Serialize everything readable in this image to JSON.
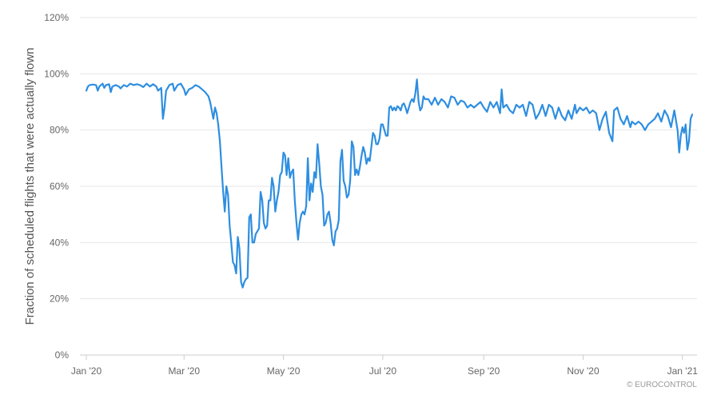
{
  "chart_data": {
    "type": "line",
    "title": "",
    "xlabel": "",
    "ylabel": "Fraction of scheduled flights that were actually flown",
    "ylim": [
      0,
      120
    ],
    "yticks": [
      "0%",
      "20%",
      "40%",
      "60%",
      "80%",
      "100%",
      "120%"
    ],
    "ytick_values": [
      0,
      20,
      40,
      60,
      80,
      100,
      120
    ],
    "xticks": [
      "Jan '20",
      "Mar '20",
      "May '20",
      "Jul '20",
      "Sep '20",
      "Nov '20",
      "Jan '21"
    ],
    "xtick_dates": [
      "2020-01-01",
      "2020-03-01",
      "2020-05-01",
      "2020-07-01",
      "2020-09-01",
      "2020-11-01",
      "2021-01-01"
    ],
    "xlim": [
      "2020-01-01",
      "2021-01-07"
    ],
    "grid": true,
    "legend": "none",
    "credit": "© EUROCONTROL",
    "line_color": "#2e8ee0",
    "series": [
      {
        "points": [
          [
            "2020-01-01",
            94
          ],
          [
            "2020-01-02",
            95.5
          ],
          [
            "2020-01-03",
            96
          ],
          [
            "2020-01-05",
            96.2
          ],
          [
            "2020-01-07",
            96
          ],
          [
            "2020-01-08",
            94
          ],
          [
            "2020-01-09",
            95.5
          ],
          [
            "2020-01-11",
            96.5
          ],
          [
            "2020-01-12",
            95
          ],
          [
            "2020-01-13",
            96
          ],
          [
            "2020-01-15",
            96.3
          ],
          [
            "2020-01-16",
            93.5
          ],
          [
            "2020-01-17",
            95.5
          ],
          [
            "2020-01-19",
            96
          ],
          [
            "2020-01-21",
            95.5
          ],
          [
            "2020-01-22",
            94.8
          ],
          [
            "2020-01-24",
            96
          ],
          [
            "2020-01-26",
            95.5
          ],
          [
            "2020-01-28",
            96.5
          ],
          [
            "2020-01-30",
            96
          ],
          [
            "2020-02-01",
            96.3
          ],
          [
            "2020-02-03",
            96
          ],
          [
            "2020-02-05",
            95.3
          ],
          [
            "2020-02-07",
            96.5
          ],
          [
            "2020-02-09",
            95.5
          ],
          [
            "2020-02-11",
            96.3
          ],
          [
            "2020-02-13",
            95.5
          ],
          [
            "2020-02-14",
            94
          ],
          [
            "2020-02-15",
            94.5
          ],
          [
            "2020-02-16",
            95
          ],
          [
            "2020-02-17",
            84
          ],
          [
            "2020-02-18",
            88
          ],
          [
            "2020-02-19",
            94
          ],
          [
            "2020-02-21",
            96
          ],
          [
            "2020-02-23",
            96.5
          ],
          [
            "2020-02-24",
            94
          ],
          [
            "2020-02-26",
            96
          ],
          [
            "2020-02-28",
            96.5
          ],
          [
            "2020-03-01",
            94.5
          ],
          [
            "2020-03-02",
            92.5
          ],
          [
            "2020-03-04",
            94.5
          ],
          [
            "2020-03-06",
            95
          ],
          [
            "2020-03-08",
            96
          ],
          [
            "2020-03-10",
            95.5
          ],
          [
            "2020-03-12",
            94.5
          ],
          [
            "2020-03-14",
            93.5
          ],
          [
            "2020-03-16",
            92
          ],
          [
            "2020-03-17",
            90
          ],
          [
            "2020-03-18",
            87
          ],
          [
            "2020-03-19",
            84
          ],
          [
            "2020-03-20",
            88
          ],
          [
            "2020-03-21",
            86
          ],
          [
            "2020-03-22",
            82
          ],
          [
            "2020-03-23",
            76
          ],
          [
            "2020-03-24",
            67
          ],
          [
            "2020-03-25",
            58
          ],
          [
            "2020-03-26",
            51
          ],
          [
            "2020-03-27",
            60
          ],
          [
            "2020-03-28",
            57
          ],
          [
            "2020-03-29",
            46
          ],
          [
            "2020-03-30",
            40
          ],
          [
            "2020-03-31",
            33
          ],
          [
            "2020-04-01",
            32
          ],
          [
            "2020-04-02",
            29
          ],
          [
            "2020-04-03",
            42
          ],
          [
            "2020-04-04",
            38
          ],
          [
            "2020-04-05",
            26
          ],
          [
            "2020-04-06",
            24
          ],
          [
            "2020-04-07",
            26
          ],
          [
            "2020-04-08",
            27
          ],
          [
            "2020-04-09",
            27.5
          ],
          [
            "2020-04-10",
            49
          ],
          [
            "2020-04-11",
            50
          ],
          [
            "2020-04-12",
            40
          ],
          [
            "2020-04-13",
            40
          ],
          [
            "2020-04-14",
            43
          ],
          [
            "2020-04-16",
            45
          ],
          [
            "2020-04-17",
            58
          ],
          [
            "2020-04-18",
            55
          ],
          [
            "2020-04-19",
            47
          ],
          [
            "2020-04-20",
            45
          ],
          [
            "2020-04-21",
            46
          ],
          [
            "2020-04-22",
            55
          ],
          [
            "2020-04-23",
            55
          ],
          [
            "2020-04-24",
            63
          ],
          [
            "2020-04-25",
            60
          ],
          [
            "2020-04-26",
            51
          ],
          [
            "2020-04-27",
            55
          ],
          [
            "2020-04-28",
            58
          ],
          [
            "2020-04-29",
            64
          ],
          [
            "2020-04-30",
            65
          ],
          [
            "2020-05-01",
            72
          ],
          [
            "2020-05-02",
            71
          ],
          [
            "2020-05-03",
            64
          ],
          [
            "2020-05-04",
            70
          ],
          [
            "2020-05-05",
            63
          ],
          [
            "2020-05-06",
            65
          ],
          [
            "2020-05-07",
            66
          ],
          [
            "2020-05-08",
            55
          ],
          [
            "2020-05-09",
            47
          ],
          [
            "2020-05-10",
            41
          ],
          [
            "2020-05-11",
            47
          ],
          [
            "2020-05-12",
            50
          ],
          [
            "2020-05-13",
            51
          ],
          [
            "2020-05-14",
            50
          ],
          [
            "2020-05-15",
            53
          ],
          [
            "2020-05-16",
            70
          ],
          [
            "2020-05-17",
            55
          ],
          [
            "2020-05-18",
            61
          ],
          [
            "2020-05-19",
            58
          ],
          [
            "2020-05-20",
            65
          ],
          [
            "2020-05-21",
            63
          ],
          [
            "2020-05-22",
            75
          ],
          [
            "2020-05-23",
            68
          ],
          [
            "2020-05-24",
            60
          ],
          [
            "2020-05-25",
            57
          ],
          [
            "2020-05-26",
            46
          ],
          [
            "2020-05-27",
            47
          ],
          [
            "2020-05-28",
            50
          ],
          [
            "2020-05-29",
            51
          ],
          [
            "2020-05-30",
            47
          ],
          [
            "2020-05-31",
            41
          ],
          [
            "2020-06-01",
            39
          ],
          [
            "2020-06-02",
            44
          ],
          [
            "2020-06-03",
            45
          ],
          [
            "2020-06-04",
            48
          ],
          [
            "2020-06-05",
            69
          ],
          [
            "2020-06-06",
            73
          ],
          [
            "2020-06-07",
            62
          ],
          [
            "2020-06-08",
            60
          ],
          [
            "2020-06-09",
            56
          ],
          [
            "2020-06-10",
            57
          ],
          [
            "2020-06-11",
            62
          ],
          [
            "2020-06-12",
            76
          ],
          [
            "2020-06-13",
            74
          ],
          [
            "2020-06-14",
            64
          ],
          [
            "2020-06-15",
            66
          ],
          [
            "2020-06-16",
            64
          ],
          [
            "2020-06-17",
            67
          ],
          [
            "2020-06-18",
            71
          ],
          [
            "2020-06-19",
            74
          ],
          [
            "2020-06-20",
            72
          ],
          [
            "2020-06-21",
            68
          ],
          [
            "2020-06-22",
            70
          ],
          [
            "2020-06-23",
            69
          ],
          [
            "2020-06-24",
            74
          ],
          [
            "2020-06-25",
            79
          ],
          [
            "2020-06-26",
            78
          ],
          [
            "2020-06-27",
            75
          ],
          [
            "2020-06-28",
            75
          ],
          [
            "2020-06-29",
            77
          ],
          [
            "2020-06-30",
            82
          ],
          [
            "2020-07-01",
            82
          ],
          [
            "2020-07-02",
            80
          ],
          [
            "2020-07-03",
            78
          ],
          [
            "2020-07-04",
            78
          ],
          [
            "2020-07-05",
            88
          ],
          [
            "2020-07-06",
            88.5
          ],
          [
            "2020-07-07",
            87
          ],
          [
            "2020-07-08",
            88
          ],
          [
            "2020-07-09",
            87
          ],
          [
            "2020-07-10",
            88.5
          ],
          [
            "2020-07-11",
            88
          ],
          [
            "2020-07-12",
            87
          ],
          [
            "2020-07-13",
            89
          ],
          [
            "2020-07-14",
            89.5
          ],
          [
            "2020-07-15",
            88
          ],
          [
            "2020-07-16",
            86
          ],
          [
            "2020-07-17",
            88
          ],
          [
            "2020-07-18",
            90
          ],
          [
            "2020-07-19",
            91
          ],
          [
            "2020-07-20",
            90
          ],
          [
            "2020-07-21",
            93
          ],
          [
            "2020-07-22",
            98
          ],
          [
            "2020-07-23",
            90
          ],
          [
            "2020-07-24",
            87
          ],
          [
            "2020-07-25",
            88
          ],
          [
            "2020-07-26",
            92
          ],
          [
            "2020-07-27",
            91
          ],
          [
            "2020-07-29",
            91
          ],
          [
            "2020-07-31",
            89
          ],
          [
            "2020-08-02",
            91.5
          ],
          [
            "2020-08-04",
            89
          ],
          [
            "2020-08-06",
            91
          ],
          [
            "2020-08-08",
            90
          ],
          [
            "2020-08-10",
            88
          ],
          [
            "2020-08-12",
            92
          ],
          [
            "2020-08-14",
            91.5
          ],
          [
            "2020-08-16",
            89
          ],
          [
            "2020-08-18",
            90.5
          ],
          [
            "2020-08-20",
            90
          ],
          [
            "2020-08-22",
            88
          ],
          [
            "2020-08-24",
            89
          ],
          [
            "2020-08-26",
            88
          ],
          [
            "2020-08-28",
            89
          ],
          [
            "2020-08-30",
            90
          ],
          [
            "2020-09-01",
            88
          ],
          [
            "2020-09-03",
            86.5
          ],
          [
            "2020-09-05",
            90
          ],
          [
            "2020-09-07",
            88
          ],
          [
            "2020-09-09",
            90
          ],
          [
            "2020-09-11",
            86
          ],
          [
            "2020-09-12",
            94.5
          ],
          [
            "2020-09-13",
            88
          ],
          [
            "2020-09-15",
            89
          ],
          [
            "2020-09-17",
            87
          ],
          [
            "2020-09-19",
            86
          ],
          [
            "2020-09-21",
            89
          ],
          [
            "2020-09-23",
            88
          ],
          [
            "2020-09-25",
            89
          ],
          [
            "2020-09-27",
            85
          ],
          [
            "2020-09-29",
            90
          ],
          [
            "2020-10-01",
            89
          ],
          [
            "2020-10-03",
            84
          ],
          [
            "2020-10-05",
            86
          ],
          [
            "2020-10-07",
            89
          ],
          [
            "2020-10-09",
            85
          ],
          [
            "2020-10-11",
            89
          ],
          [
            "2020-10-13",
            88
          ],
          [
            "2020-10-15",
            84
          ],
          [
            "2020-10-17",
            88
          ],
          [
            "2020-10-19",
            85
          ],
          [
            "2020-10-21",
            83.5
          ],
          [
            "2020-10-23",
            87
          ],
          [
            "2020-10-25",
            84
          ],
          [
            "2020-10-27",
            89
          ],
          [
            "2020-10-28",
            86
          ],
          [
            "2020-10-30",
            88
          ],
          [
            "2020-11-01",
            87
          ],
          [
            "2020-11-03",
            88
          ],
          [
            "2020-11-05",
            86
          ],
          [
            "2020-11-07",
            87
          ],
          [
            "2020-11-09",
            86
          ],
          [
            "2020-11-11",
            80
          ],
          [
            "2020-11-13",
            84
          ],
          [
            "2020-11-15",
            86.5
          ],
          [
            "2020-11-17",
            79
          ],
          [
            "2020-11-19",
            76
          ],
          [
            "2020-11-20",
            87
          ],
          [
            "2020-11-22",
            88
          ],
          [
            "2020-11-24",
            84
          ],
          [
            "2020-11-26",
            82
          ],
          [
            "2020-11-28",
            85
          ],
          [
            "2020-11-30",
            81
          ],
          [
            "2020-12-01",
            83
          ],
          [
            "2020-12-03",
            82
          ],
          [
            "2020-12-05",
            83
          ],
          [
            "2020-12-07",
            82
          ],
          [
            "2020-12-09",
            80
          ],
          [
            "2020-12-11",
            82
          ],
          [
            "2020-12-13",
            83
          ],
          [
            "2020-12-15",
            84
          ],
          [
            "2020-12-17",
            86
          ],
          [
            "2020-12-19",
            83
          ],
          [
            "2020-12-21",
            87
          ],
          [
            "2020-12-23",
            85
          ],
          [
            "2020-12-25",
            81
          ],
          [
            "2020-12-27",
            87
          ],
          [
            "2020-12-29",
            80
          ],
          [
            "2020-12-30",
            72
          ],
          [
            "2020-12-31",
            78
          ],
          [
            "2021-01-01",
            81
          ],
          [
            "2021-01-02",
            79
          ],
          [
            "2021-01-03",
            82
          ],
          [
            "2021-01-04",
            73
          ],
          [
            "2021-01-05",
            76
          ],
          [
            "2021-01-06",
            84
          ],
          [
            "2021-01-07",
            85.5
          ]
        ]
      }
    ]
  }
}
